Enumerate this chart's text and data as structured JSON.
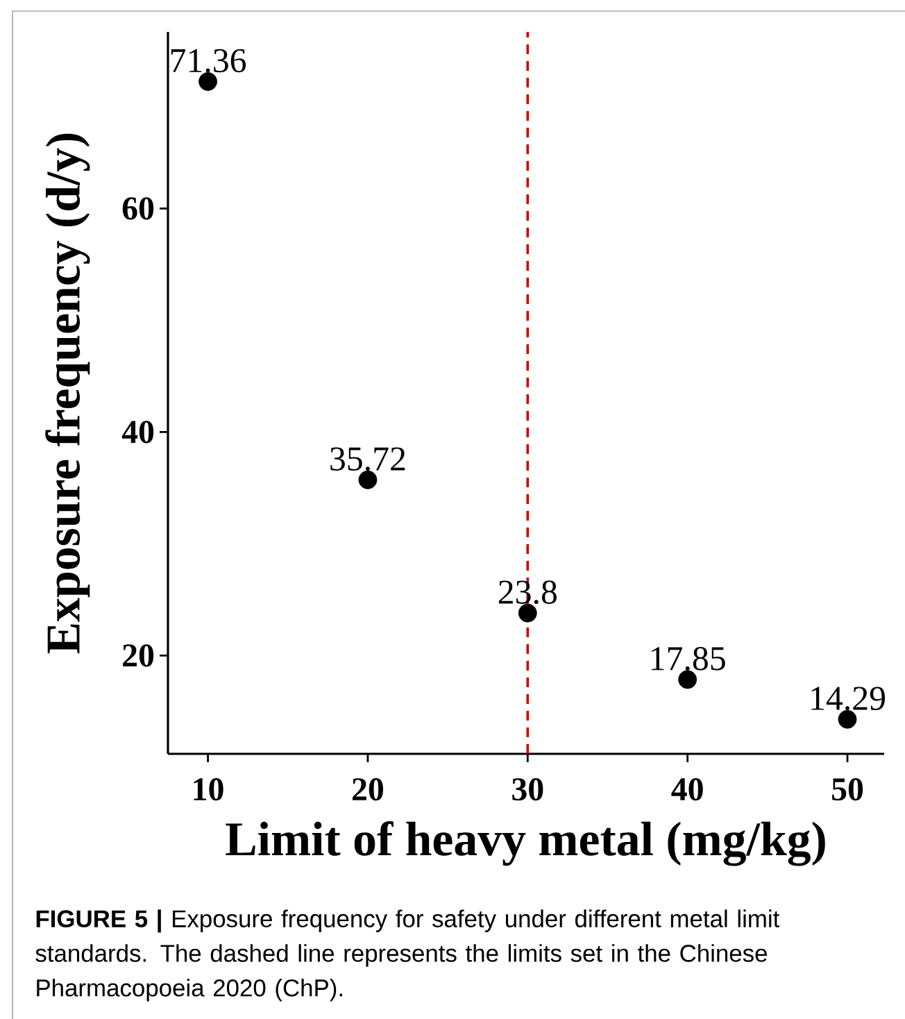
{
  "chart_data": {
    "type": "scatter",
    "xlabel": "Limit of heavy metal (mg/kg)",
    "ylabel": "Exposure frequency (d/y)",
    "x": [
      10,
      20,
      30,
      40,
      50
    ],
    "values": [
      71.36,
      35.72,
      23.8,
      17.85,
      14.29
    ],
    "color": "#000000",
    "marker": "circle",
    "data_labels": true,
    "xlim": [
      7.5,
      52.3
    ],
    "ylim": [
      11.2,
      75.8
    ],
    "xticks": [
      10,
      20,
      30,
      40,
      50
    ],
    "yticks": [
      20,
      40,
      60
    ],
    "ref_lines": [
      {
        "axis": "x",
        "value": 30,
        "color": "#cc0000",
        "line_style": "dashed"
      }
    ],
    "annotations": [
      "**FIGURE 5 |** Exposure frequency for safety under different metal limit standards. The dashed line represents the limits set in the Chinese Pharmacopoeia 2020 (ChP)."
    ]
  }
}
